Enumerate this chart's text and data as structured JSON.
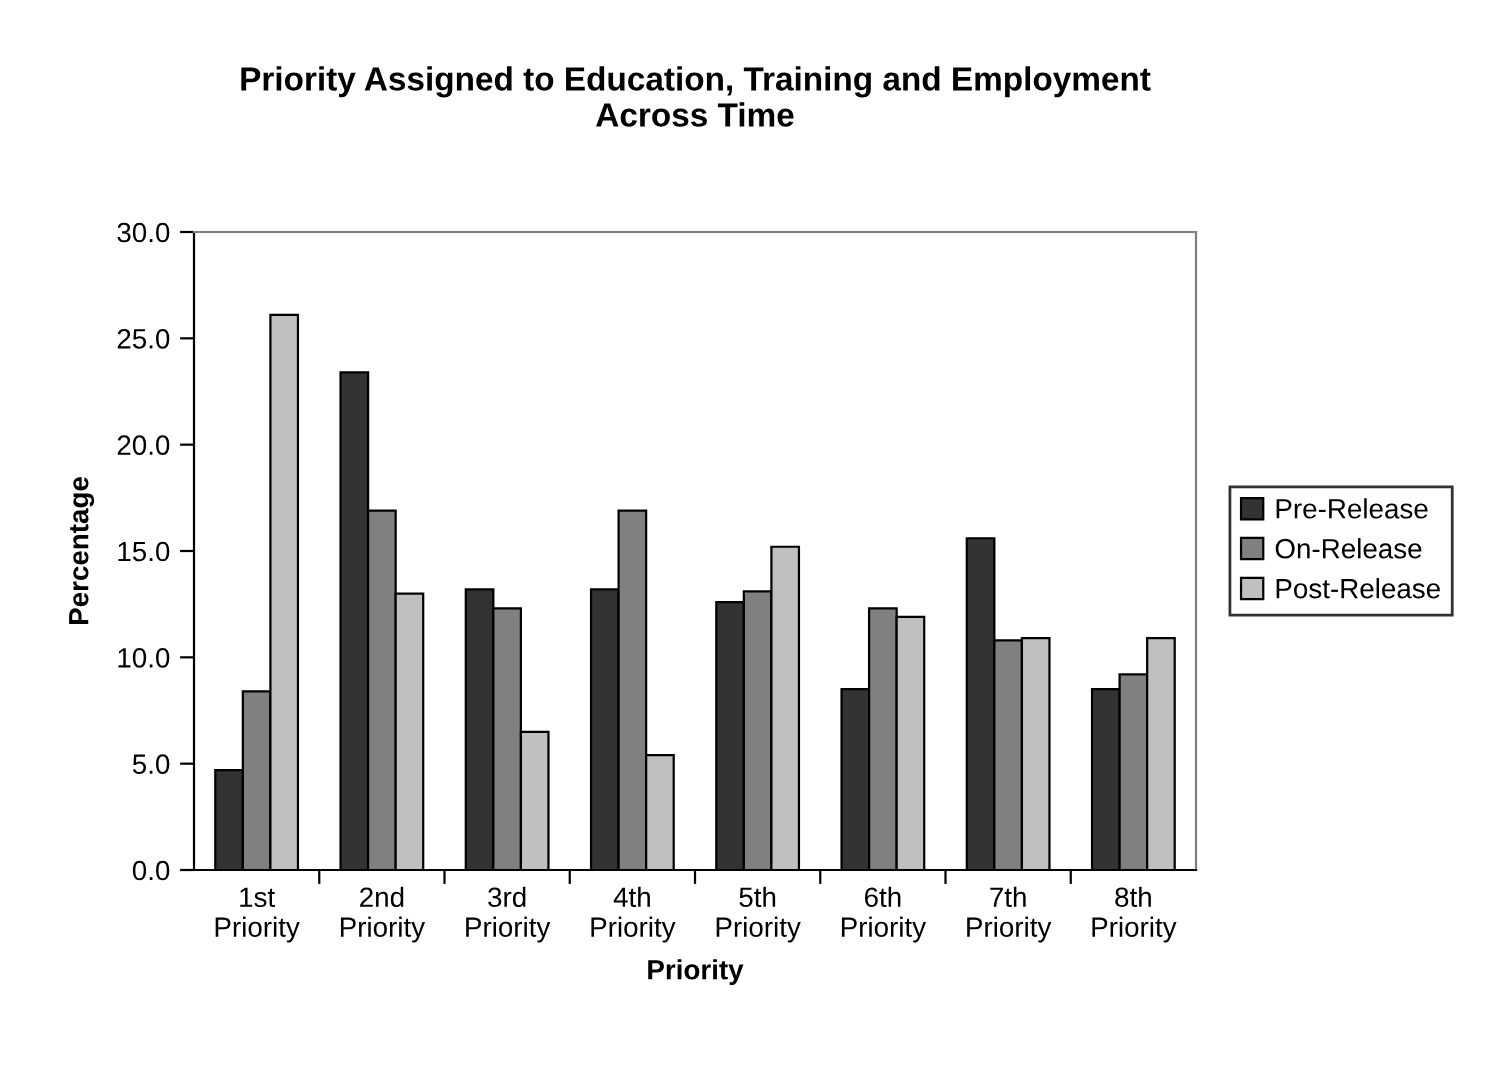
{
  "chart_data": {
    "type": "bar",
    "title": "Priority Assigned to Education, Training and Employment\nAcross Time",
    "xlabel": "Priority",
    "ylabel": "Percentage",
    "categories": [
      "1st Priority",
      "2nd Priority",
      "3rd Priority",
      "4th Priority",
      "5th Priority",
      "6th Priority",
      "7th Priority",
      "8th Priority"
    ],
    "series": [
      {
        "name": "Pre-Release",
        "color": "#333333",
        "values": [
          4.7,
          23.4,
          13.2,
          13.2,
          12.6,
          8.5,
          15.6,
          8.5
        ]
      },
      {
        "name": "On-Release",
        "color": "#808080",
        "values": [
          8.4,
          16.9,
          12.3,
          16.9,
          13.1,
          12.3,
          10.8,
          9.2
        ]
      },
      {
        "name": "Post-Release",
        "color": "#c0c0c0",
        "values": [
          26.1,
          13.0,
          6.5,
          5.4,
          15.2,
          11.9,
          10.9,
          10.9
        ]
      }
    ],
    "ylim": [
      0,
      30
    ],
    "yticks": [
      {
        "value": 0,
        "label": "0.0"
      },
      {
        "value": 5,
        "label": "5.0"
      },
      {
        "value": 10,
        "label": "10.0"
      },
      {
        "value": 15,
        "label": "15.0"
      },
      {
        "value": 20,
        "label": "20.0"
      },
      {
        "value": 25,
        "label": "25.0"
      },
      {
        "value": 30,
        "label": "30.0"
      }
    ],
    "grid": false,
    "legend": "right"
  }
}
